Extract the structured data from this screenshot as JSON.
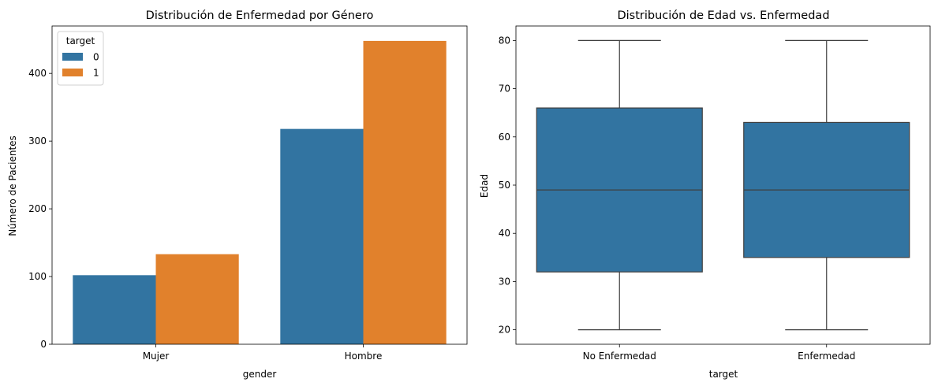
{
  "chart_data": [
    {
      "type": "bar",
      "title": "Distribución de Enfermedad por Género",
      "xlabel": "gender",
      "ylabel": "Número de Pacientes",
      "categories": [
        "Mujer",
        "Hombre"
      ],
      "series": [
        {
          "name": "0",
          "values": [
            102,
            318
          ],
          "color": "#3274a1"
        },
        {
          "name": "1",
          "values": [
            133,
            448
          ],
          "color": "#e1812c"
        }
      ],
      "ylim": [
        0,
        470
      ],
      "yticks": [
        0,
        100,
        200,
        300,
        400
      ],
      "legend": {
        "title": "target",
        "position": "top-left"
      },
      "grid": false
    },
    {
      "type": "box",
      "title": "Distribución de Edad vs. Enfermedad",
      "xlabel": "target",
      "ylabel": "Edad",
      "categories": [
        "No Enfermedad",
        "Enfermedad"
      ],
      "boxes": [
        {
          "category": "No Enfermedad",
          "whisker_low": 20,
          "q1": 32,
          "median": 49,
          "q3": 66,
          "whisker_high": 80
        },
        {
          "category": "Enfermedad",
          "whisker_low": 20,
          "q1": 35,
          "median": 49,
          "q3": 63,
          "whisker_high": 80
        }
      ],
      "ylim": [
        17,
        83
      ],
      "yticks": [
        20,
        30,
        40,
        50,
        60,
        70,
        80
      ],
      "color": "#3274a1",
      "grid": false
    }
  ]
}
